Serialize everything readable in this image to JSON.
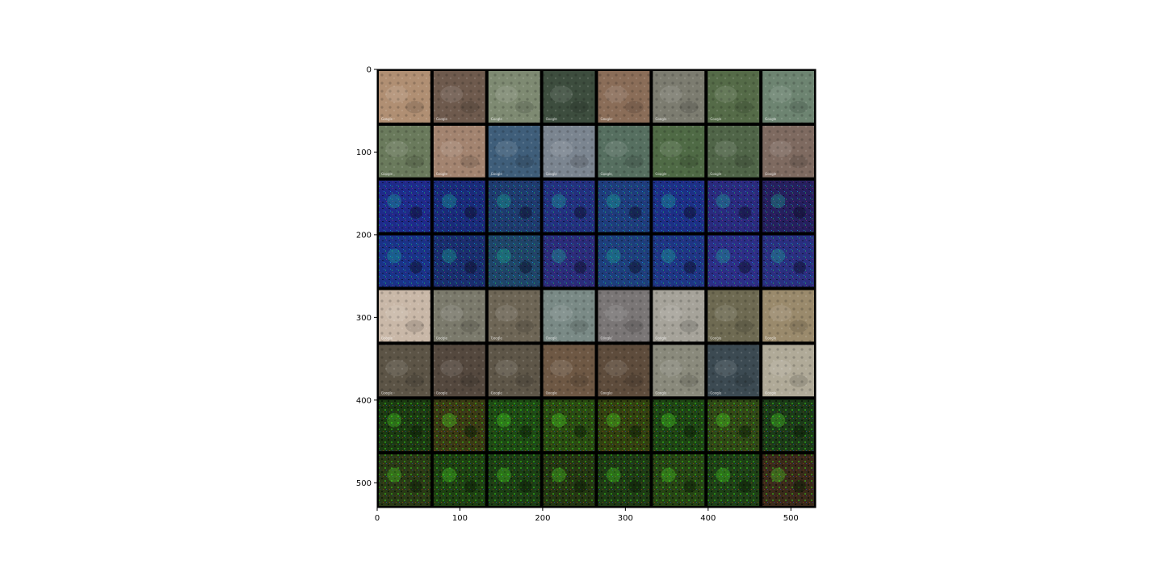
{
  "figure": {
    "type": "image-grid",
    "grid": {
      "rows": 8,
      "cols": 8
    },
    "x_ticks": [
      "0",
      "100",
      "200",
      "300",
      "400",
      "500"
    ],
    "y_ticks": [
      "0",
      "100",
      "200",
      "300",
      "400",
      "500"
    ],
    "x_tick_values": [
      0,
      100,
      200,
      300,
      400,
      500
    ],
    "y_tick_values": [
      0,
      100,
      200,
      300,
      400,
      500
    ],
    "xlim": [
      0,
      530
    ],
    "ylim": [
      530,
      0
    ],
    "tile_watermark": "Google",
    "row_kinds": [
      "satellite",
      "satellite",
      "noise-blue",
      "noise-blue",
      "satellite",
      "satellite",
      "noise-green",
      "noise-green"
    ],
    "tile_colors": [
      [
        "#b08f73",
        "#6e5a4d",
        "#7e8a72",
        "#3d4d3e",
        "#8a6d58",
        "#7c7c70",
        "#556b48",
        "#6d8471"
      ],
      [
        "#6a7a5c",
        "#a38470",
        "#3f5e7a",
        "#7b8590",
        "#566f60",
        "#4f6a45",
        "#506548",
        "#7e6a60"
      ],
      [
        "#1f2a8a",
        "#1a2a7a",
        "#1e3a6e",
        "#23307e",
        "#1e3c7c",
        "#1d2f86",
        "#2a2a7e",
        "#261f5e"
      ],
      [
        "#1b3288",
        "#1a2d6e",
        "#1f4468",
        "#2b2c7a",
        "#1e3e7c",
        "#1f3584",
        "#2c2e86",
        "#2a2f80"
      ],
      [
        "#c9b8a8",
        "#7b7a6c",
        "#6e6656",
        "#7a8a86",
        "#7a7676",
        "#a6a39a",
        "#6e6a52",
        "#9a8a6c"
      ],
      [
        "#5c5446",
        "#54483e",
        "#5e5648",
        "#6e5844",
        "#5e4c3c",
        "#8a8a7c",
        "#3c4a52",
        "#b0aa98"
      ],
      [
        "#1c3a12",
        "#3a3a14",
        "#1e4a14",
        "#2a4a12",
        "#334010",
        "#1e4414",
        "#304816",
        "#1c3a18"
      ],
      [
        "#2a3a16",
        "#1e4012",
        "#1c3e14",
        "#243612",
        "#1e3a14",
        "#264414",
        "#1e4016",
        "#3a2a1a"
      ]
    ]
  }
}
